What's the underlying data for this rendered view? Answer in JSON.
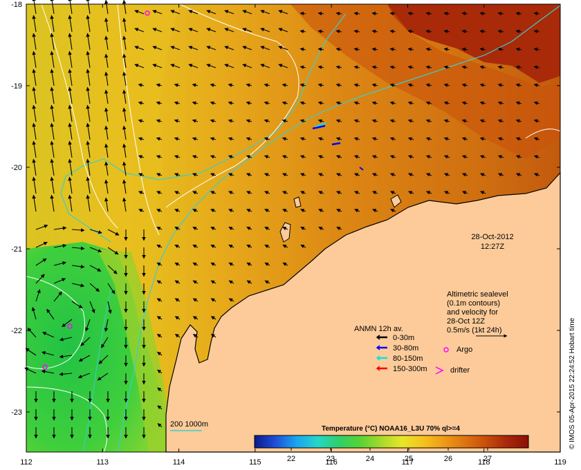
{
  "axes": {
    "lon_ticks": [
      "112",
      "113",
      "114",
      "115",
      "116",
      "117",
      "118",
      "119"
    ],
    "lat_ticks": [
      "-18",
      "-19",
      "-20",
      "-21",
      "-22",
      "-23"
    ]
  },
  "timestamp": {
    "date": "28-Oct-2012",
    "time": "12:27Z"
  },
  "sealevel_note": {
    "line1": "Altimetric sealevel",
    "line2": "(0.1m contours)",
    "line3": "and velocity for",
    "line4": "28-Oct 12Z",
    "line5": "0.5m/s (1kt 24h)"
  },
  "legend": {
    "title": "ANMN 12h av.",
    "items": [
      {
        "label": "0-30m",
        "color": "#000000"
      },
      {
        "label": "30-80m",
        "color": "#0000ff"
      },
      {
        "label": "80-150m",
        "color": "#00e5e5"
      },
      {
        "label": "150-300m",
        "color": "#ff0000"
      }
    ],
    "argo_label": "Argo",
    "drifter_label": "drifter"
  },
  "isobath_label": "200  1000m",
  "colorbar": {
    "title": "Temperature (°C) NOAA16_L3U 70% ql>=4",
    "ticks": [
      "22",
      "23",
      "24",
      "25",
      "26",
      "27"
    ],
    "colors": [
      "#0a1a8c",
      "#1f4fd8",
      "#1aa6ef",
      "#25d6c9",
      "#2fcf6a",
      "#57d335",
      "#a6da2b",
      "#e7e629",
      "#f6c21f",
      "#ee9a16",
      "#dd7310",
      "#c84d0b",
      "#a8260a",
      "#8c1007"
    ]
  },
  "credit": "© IMOS 05-Apr-2015 22:24:52 Hobart time",
  "colors": {
    "land": "#fdcb9a",
    "warm_sea": "#d76a10",
    "hot_sea": "#a82a08",
    "green_sea": "#3ec94a",
    "coastline": "#000000",
    "isobath": "#39cfcf"
  }
}
